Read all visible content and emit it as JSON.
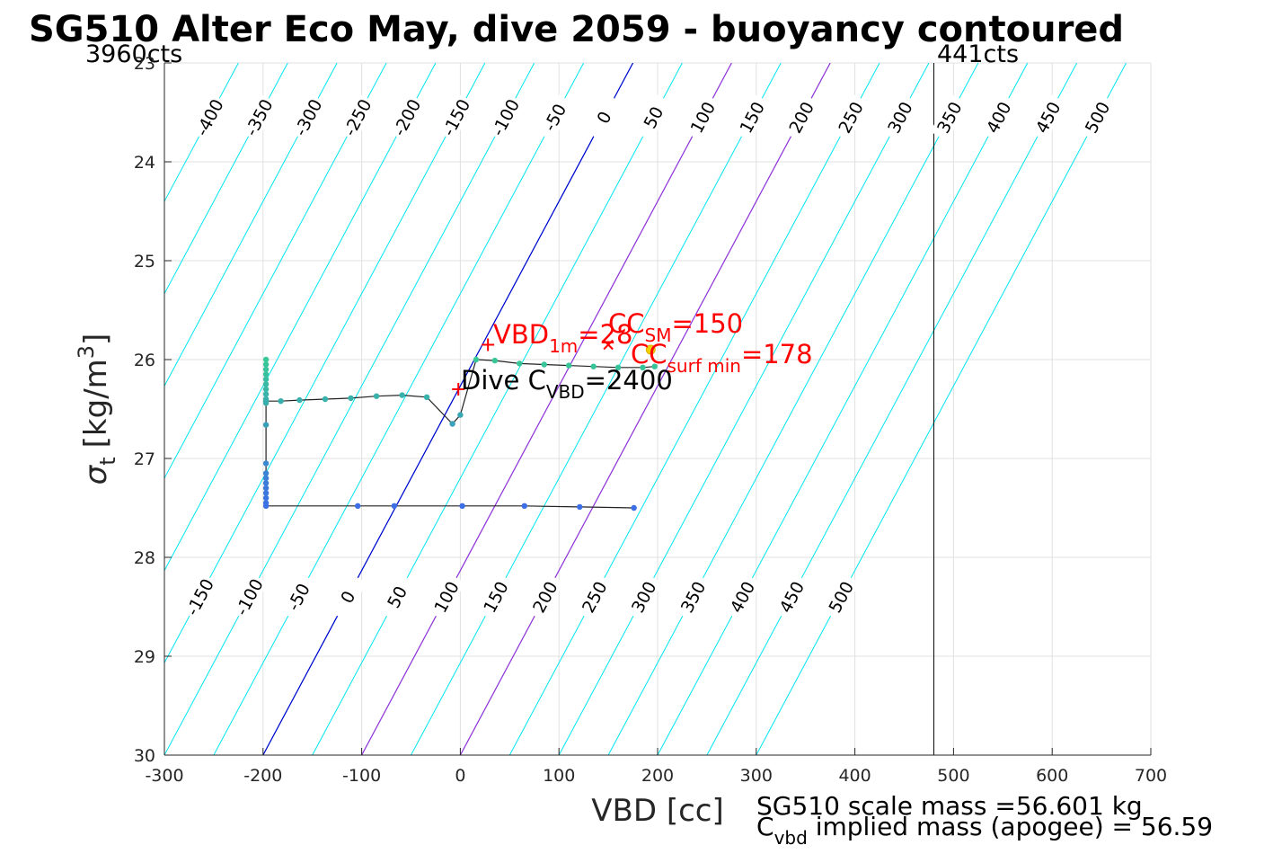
{
  "title": "SG510 Alter Eco May, dive 2059 - buoyancy contoured",
  "top_left_label": "3960cts",
  "top_right_label": "441cts",
  "xlabel": "VBD [cc]",
  "ylabel_main": "σ",
  "ylabel_sub": "t",
  "ylabel_units_pre": "[kg/m",
  "ylabel_units_sup": "3",
  "ylabel_units_post": "]",
  "footer": {
    "scale_mass": "SG510 scale mass =56.601 kg",
    "implied_pre": "C",
    "implied_sub": "vbd",
    "implied_post": " implied mass (apogee) = 56.59"
  },
  "annotations": {
    "vbd1m_main": "VBD",
    "vbd1m_sub": "1m",
    "vbd1m_value": "=28",
    "ccsm_main": "CC",
    "ccsm_sub": "SM",
    "ccsm_value": "=150",
    "ccsurf_main": "CC",
    "ccsurf_sub": "surf min",
    "ccsurf_value": "=178",
    "dive_main": "Dive C",
    "dive_sub": "VBD",
    "dive_value": "=2400"
  },
  "colors": {
    "contour": "#00e5ee",
    "zero_line": "#0000cc",
    "purple_line": "#9b30d9",
    "marker_red": "#ff0000",
    "annotation_red": "#ff0000"
  },
  "chart_data": {
    "type": "line",
    "xlim": [
      -300,
      700
    ],
    "ylim": [
      23,
      30
    ],
    "y_reversed": true,
    "xticks": [
      -300,
      -200,
      -100,
      0,
      100,
      200,
      300,
      400,
      500,
      600,
      700
    ],
    "xtick_labels": [
      "-300",
      "-200",
      "-100",
      "0",
      "100",
      "200",
      "300",
      "400",
      "500",
      "600",
      "700"
    ],
    "yticks": [
      23,
      24,
      25,
      26,
      27,
      28,
      29,
      30
    ],
    "ytick_labels": [
      "23",
      "24",
      "25",
      "26",
      "27",
      "28",
      "29",
      "30"
    ],
    "grid": true,
    "contours": {
      "levels": [
        -400,
        -350,
        -300,
        -250,
        -200,
        -150,
        -100,
        -50,
        0,
        50,
        100,
        150,
        200,
        250,
        300,
        350,
        400,
        450,
        500
      ],
      "slope_cc_per_kgm3": -100,
      "intercept_at_sigma_30": 0,
      "upper_labels": [
        "-400",
        "-350",
        "-300",
        "-250",
        "-200",
        "-150",
        "-100",
        "-50",
        "0",
        "50",
        "100",
        "150",
        "200",
        "250",
        "300",
        "350",
        "400",
        "450",
        "500"
      ],
      "lower_labels": [
        "-150",
        "-100",
        "-50",
        "0",
        "50",
        "100",
        "150",
        "200",
        "250",
        "300",
        "350",
        "400",
        "450",
        "500"
      ]
    },
    "highlighted_lines": [
      {
        "name": "0",
        "color": "#0000cc",
        "points": [
          [
            -200,
            30
          ],
          [
            175,
            23
          ]
        ]
      },
      {
        "name": "150",
        "color": "#9b30d9",
        "points": [
          [
            -100,
            30
          ],
          [
            275,
            23
          ]
        ]
      },
      {
        "name": "178",
        "color": "#9b30d9",
        "points": [
          [
            0,
            30
          ],
          [
            375,
            23
          ]
        ]
      }
    ],
    "vertical_line_x": 480,
    "series": [
      {
        "points": [
          [
            176,
            27.5
          ],
          [
            121,
            27.49
          ],
          [
            65,
            27.48
          ],
          [
            2,
            27.48
          ],
          [
            -67,
            27.48
          ],
          [
            -104,
            27.48
          ],
          [
            -197,
            27.48
          ],
          [
            -197,
            27.45
          ],
          [
            -197,
            27.4
          ],
          [
            -197,
            27.35
          ],
          [
            -197,
            27.3
          ],
          [
            -197,
            27.25
          ],
          [
            -197,
            27.2
          ],
          [
            -197,
            27.15
          ],
          [
            -197,
            27.05
          ],
          [
            -197,
            26.66
          ],
          [
            -197,
            26.44
          ],
          [
            -197,
            26.4
          ],
          [
            -197,
            26.35
          ],
          [
            -197,
            26.3
          ],
          [
            -197,
            26.25
          ],
          [
            -197,
            26.2
          ],
          [
            -197,
            26.15
          ],
          [
            -197,
            26.1
          ],
          [
            -197,
            26.05
          ],
          [
            -197,
            26.0
          ],
          [
            -197,
            26.42
          ],
          [
            -182,
            26.42
          ],
          [
            -163,
            26.41
          ],
          [
            -137,
            26.4
          ],
          [
            -111,
            26.39
          ],
          [
            -85,
            26.37
          ],
          [
            -59,
            26.36
          ],
          [
            -34,
            26.38
          ],
          [
            -8,
            26.65
          ],
          [
            0,
            26.56
          ],
          [
            16,
            26.0
          ],
          [
            35,
            26.01
          ],
          [
            60,
            26.04
          ],
          [
            85,
            26.05
          ],
          [
            110,
            26.06
          ],
          [
            135,
            26.07
          ],
          [
            160,
            26.08
          ],
          [
            185,
            26.08
          ],
          [
            197,
            26.07
          ]
        ]
      }
    ],
    "markers": [
      {
        "x": 28,
        "y": 25.85,
        "symbol": "+",
        "color": "#ff0000"
      },
      {
        "x": -2,
        "y": 26.3,
        "symbol": "+",
        "color": "#ff0000"
      },
      {
        "x": 150,
        "y": 25.85,
        "symbol": "x",
        "color": "#ff0000"
      },
      {
        "x": 193,
        "y": 25.9,
        "symbol": "o",
        "color": "#f0d000"
      }
    ]
  }
}
